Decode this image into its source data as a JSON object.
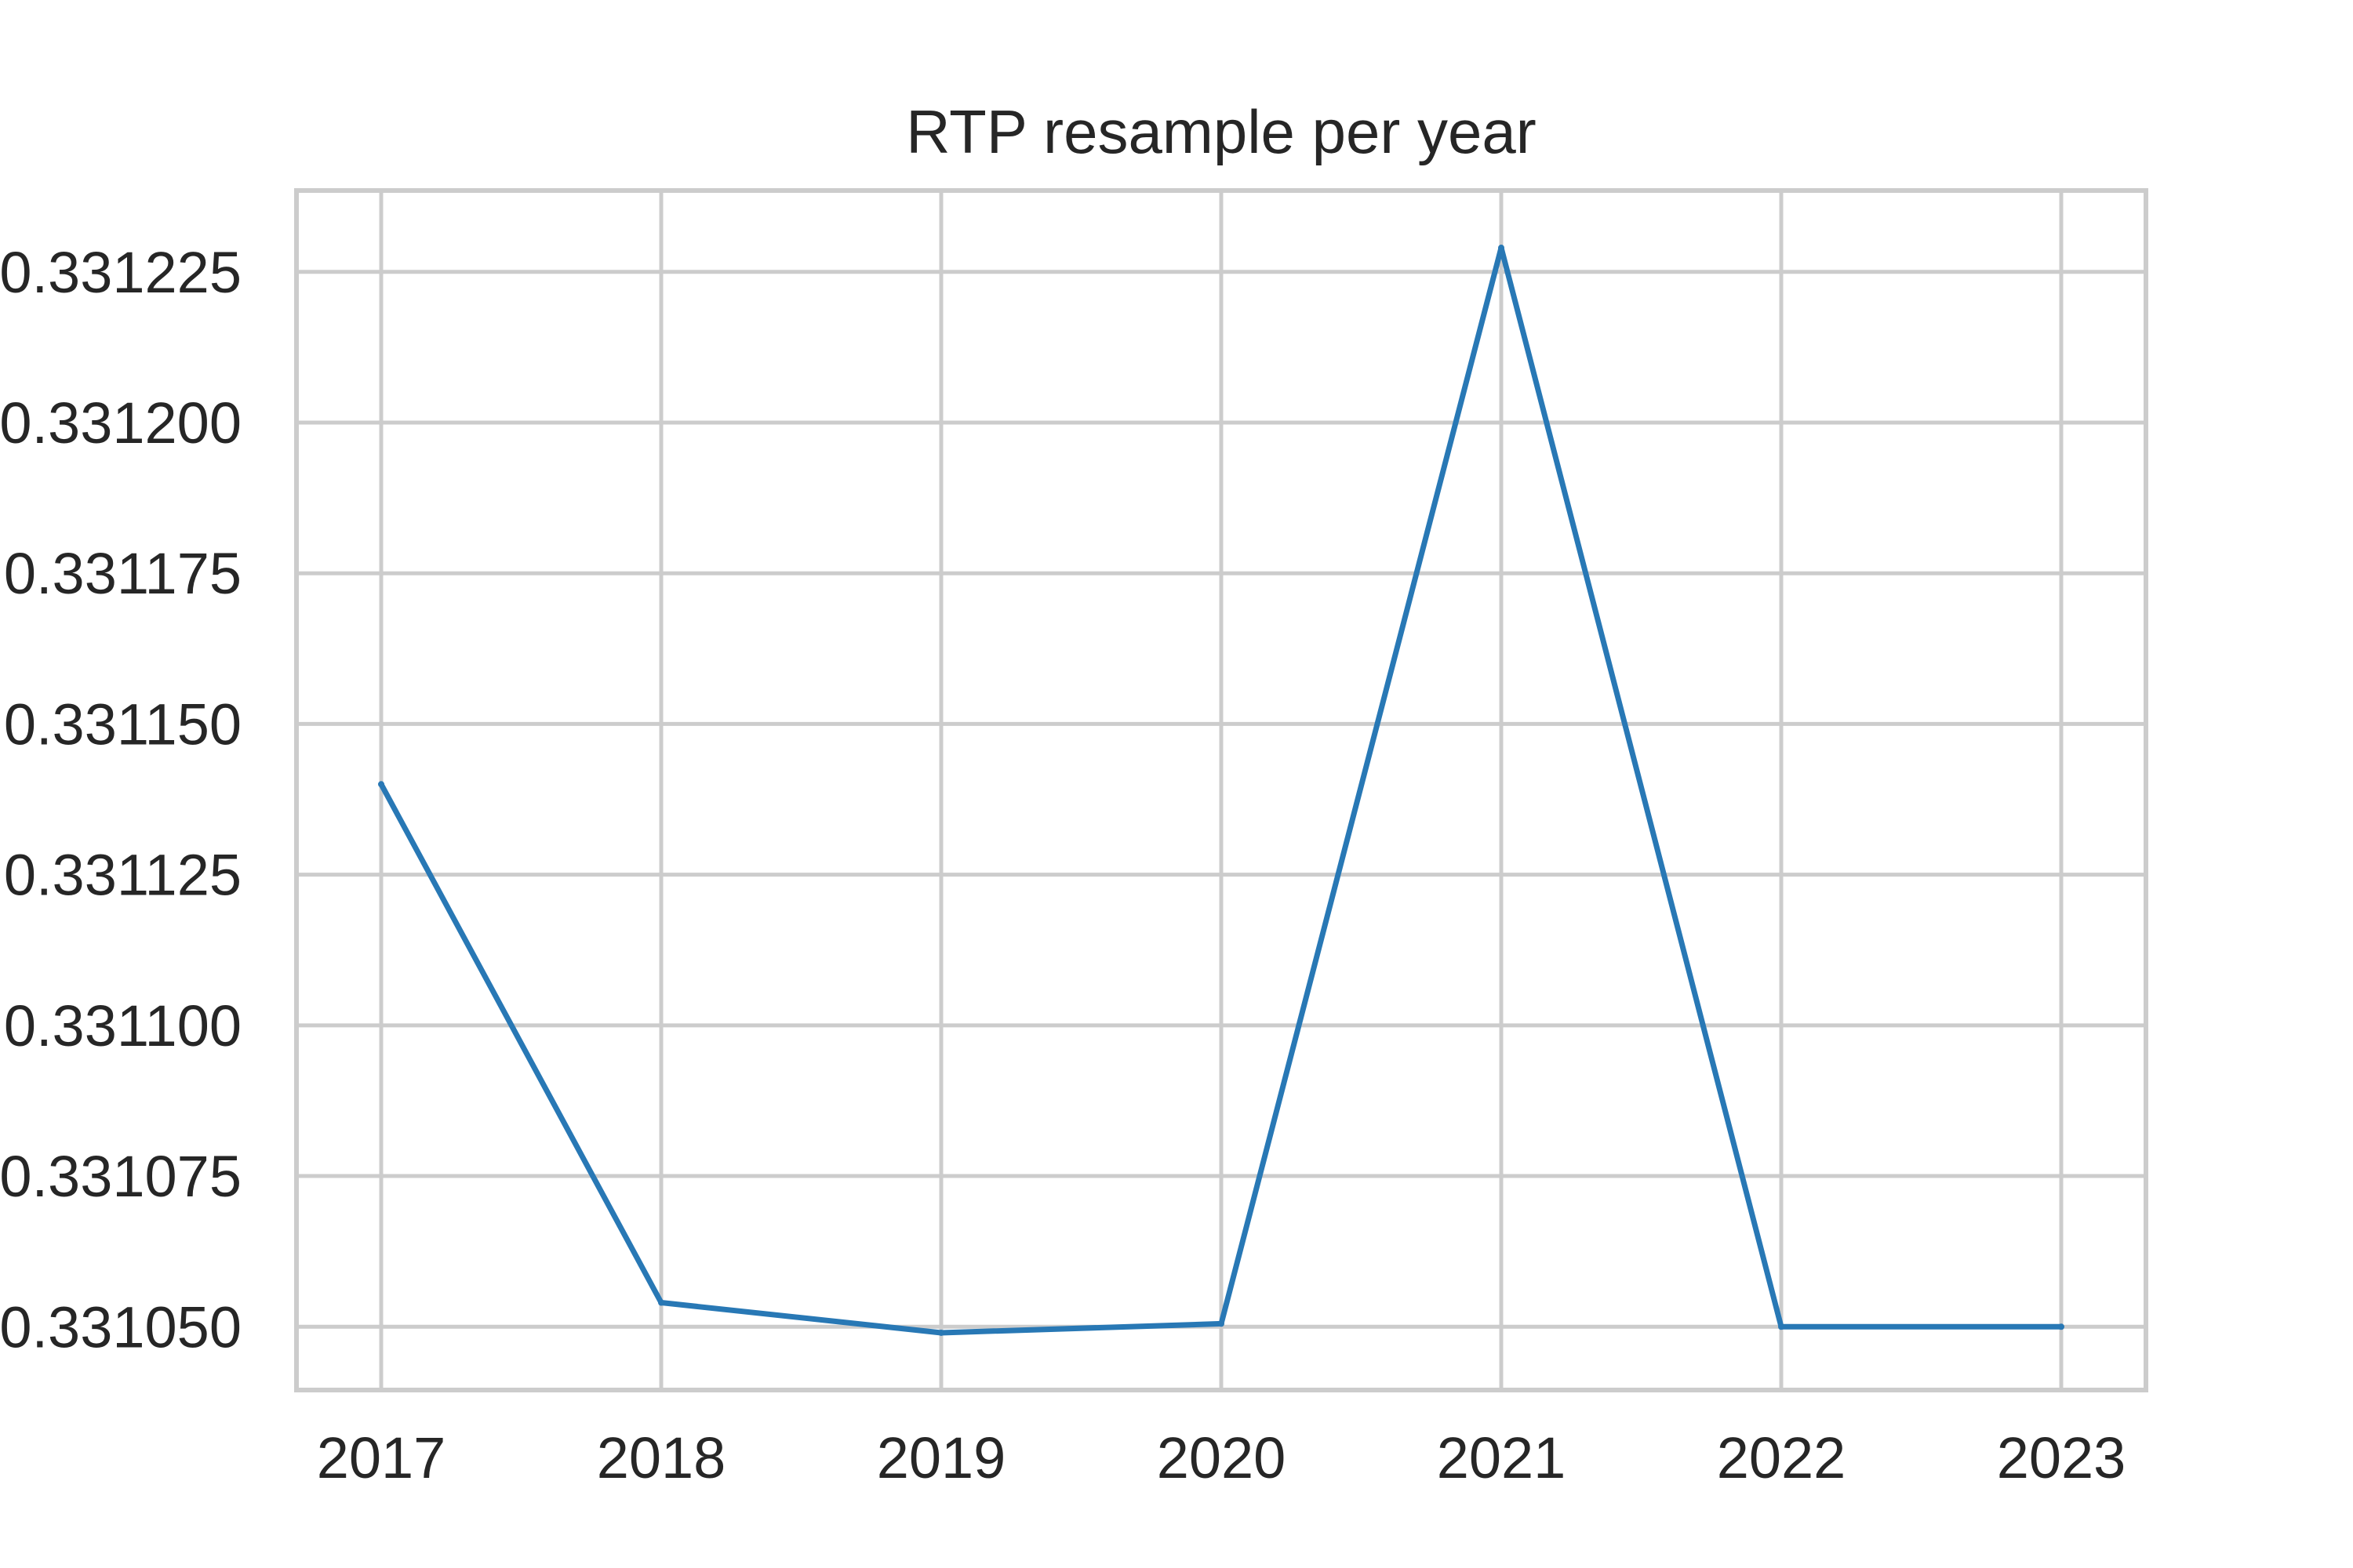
{
  "chart_data": {
    "type": "line",
    "title": "RTP resample per year",
    "xlabel": "",
    "ylabel": "",
    "x": [
      "2017",
      "2018",
      "2019",
      "2020",
      "2021",
      "2022",
      "2023"
    ],
    "series": [
      {
        "values": [
          0.33114,
          0.331054,
          0.331049,
          0.3310505,
          0.331229,
          0.33105,
          0.33105
        ]
      }
    ],
    "y_ticks": [
      0.33105,
      0.331075,
      0.3311,
      0.331125,
      0.33115,
      0.331175,
      0.3312,
      0.331225
    ],
    "y_tick_labels": [
      "0.331050",
      "0.331075",
      "0.331100",
      "0.331125",
      "0.331150",
      "0.331175",
      "0.331200",
      "0.331225"
    ],
    "ylim": [
      0.3310395,
      0.3312385
    ],
    "grid": true,
    "legend": "none",
    "colors": {
      "line": "#2878b5",
      "grid": "#cccccc",
      "text": "#262626"
    }
  }
}
